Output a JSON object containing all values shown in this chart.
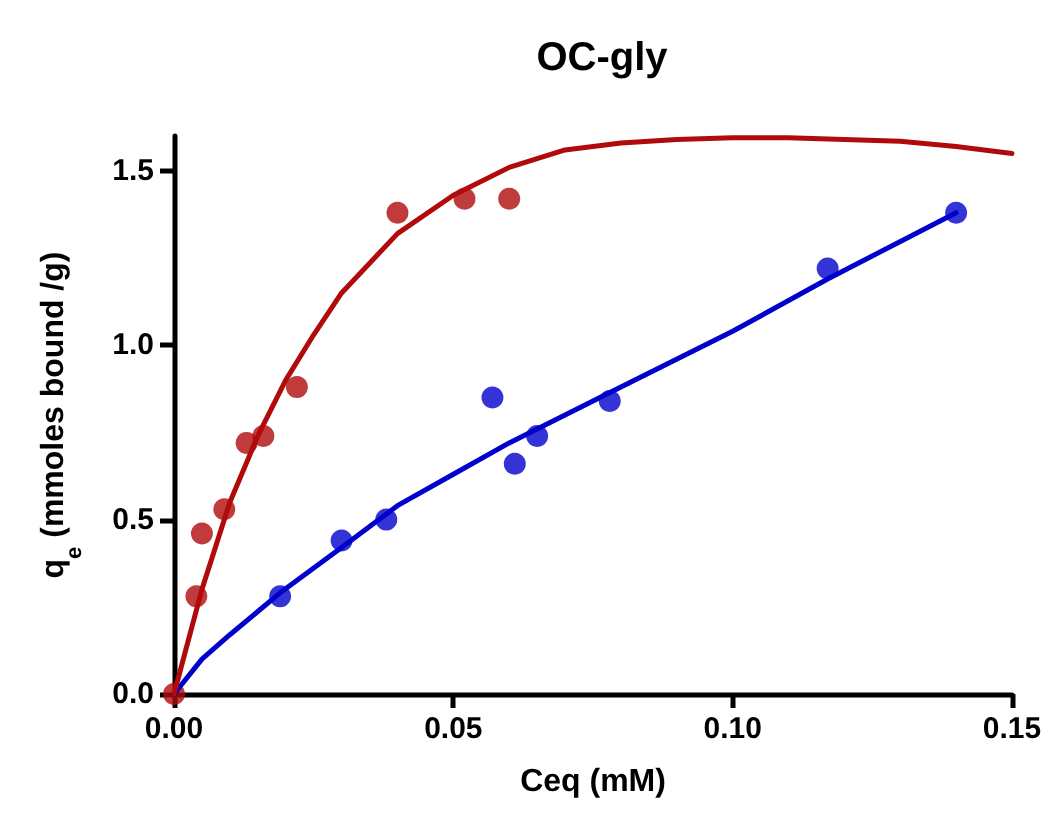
{
  "chart_data": {
    "type": "scatter",
    "title": "OC-gly",
    "xlabel": "Ceq (mM)",
    "ylabel": "q$_{e}$ (mmoles bound /g)",
    "xlim": [
      0,
      0.15
    ],
    "xticks": [
      {
        "value": 0,
        "label": "0.00"
      },
      {
        "value": 0.05,
        "label": "0.05"
      },
      {
        "value": 0.1,
        "label": "0.10"
      },
      {
        "value": 0.15,
        "label": "0.15"
      }
    ],
    "ylim": [
      0,
      1.6
    ],
    "yticks": [
      {
        "value": 0,
        "label": "0.0"
      },
      {
        "value": 0.5,
        "label": "0.5"
      },
      {
        "value": 1,
        "label": "1.0"
      },
      {
        "value": 1.5,
        "label": "1.5"
      }
    ],
    "grid": false,
    "series": [
      {
        "type": "line",
        "marker": "none",
        "color": "#0000cc",
        "x": [
          0,
          0.005,
          0.01,
          0.019,
          0.03,
          0.04,
          0.05,
          0.06,
          0.07,
          0.08,
          0.1,
          0.117,
          0.14
        ],
        "values": [
          0,
          0.1,
          0.17,
          0.29,
          0.42,
          0.54,
          0.63,
          0.72,
          0.8,
          0.88,
          1.04,
          1.19,
          1.38
        ]
      },
      {
        "type": "line",
        "marker": "none",
        "color": "#b00a0a",
        "x": [
          0,
          0.005,
          0.01,
          0.015,
          0.02,
          0.025,
          0.03,
          0.04,
          0.05,
          0.06,
          0.07,
          0.08,
          0.09,
          0.1,
          0.11,
          0.12,
          0.13,
          0.14,
          0.15
        ],
        "values": [
          0,
          0.3,
          0.55,
          0.74,
          0.9,
          1.03,
          1.15,
          1.32,
          1.43,
          1.51,
          1.56,
          1.58,
          1.59,
          1.595,
          1.595,
          1.59,
          1.585,
          1.57,
          1.55
        ]
      },
      {
        "marker": "circle",
        "color": "#0000cc",
        "x": [
          0.019,
          0.03,
          0.038,
          0.057,
          0.061,
          0.065,
          0.078,
          0.117,
          0.14
        ],
        "values": [
          0.28,
          0.44,
          0.5,
          0.85,
          0.66,
          0.74,
          0.84,
          1.22,
          1.38
        ]
      },
      {
        "marker": "circle",
        "color": "#b00a0a",
        "x": [
          0,
          0.004,
          0.005,
          0.009,
          0.013,
          0.016,
          0.022,
          0.04,
          0.052,
          0.06
        ],
        "values": [
          0,
          0.28,
          0.46,
          0.53,
          0.72,
          0.74,
          0.88,
          1.38,
          1.42,
          1.42
        ]
      }
    ]
  }
}
